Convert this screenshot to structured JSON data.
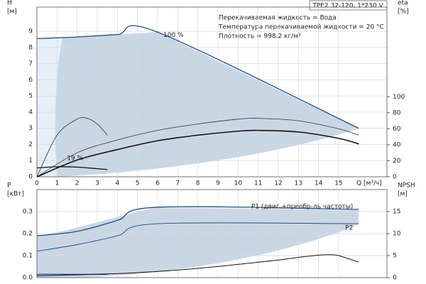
{
  "chart_data": [
    {
      "type": "line",
      "title": "TPE2 32-120, 1*230 V",
      "notes": [
        "Перекачиваемая жидкость = Вода",
        "Температура перекачиваемой жидкости = 20 °C",
        "Плотность = 998.2 кг/м³"
      ],
      "y_label": [
        "H",
        "[м]"
      ],
      "y2_label": [
        "eta",
        "[%]"
      ],
      "x_label": "Q [м³/ч]",
      "xlim": [
        0,
        17.4
      ],
      "xticks": [
        0,
        1,
        2,
        3,
        4,
        5,
        6,
        7,
        8,
        9,
        10,
        11,
        12,
        13,
        14,
        15
      ],
      "ylim": [
        0,
        10.5
      ],
      "yticks": [
        0,
        1,
        2,
        3,
        4,
        5,
        6,
        7,
        8,
        9
      ],
      "y2lim": [
        0,
        212
      ],
      "y2ticks": [
        0,
        20,
        40,
        60,
        80,
        100
      ],
      "grid": true,
      "series": [
        {
          "name": "100 %",
          "color": "#1f4e8c",
          "width": 1.3,
          "x": [
            0,
            1,
            2,
            4,
            6,
            16
          ],
          "values": [
            8.55,
            8.6,
            8.65,
            8.8,
            8.95,
            3.0
          ]
        },
        {
          "name": "19 %",
          "color": "#111111",
          "width": 1.3,
          "x": [
            0,
            1,
            2,
            3,
            3.5
          ],
          "values": [
            0.55,
            0.62,
            0.6,
            0.5,
            0.45
          ]
        },
        {
          "color": "#111111",
          "width": 1.6,
          "axis": "y2",
          "x": [
            0,
            2,
            4,
            6,
            8,
            10,
            11,
            13,
            15,
            16
          ],
          "values": [
            0,
            21,
            34,
            45,
            52,
            57,
            58,
            56,
            48,
            41
          ]
        },
        {
          "color": "#333333",
          "width": 0.8,
          "axis": "y2",
          "x": [
            0,
            2,
            4,
            6,
            8,
            10,
            11,
            13,
            15,
            16
          ],
          "values": [
            0,
            30,
            46,
            58,
            66,
            72,
            73,
            70,
            60,
            52
          ]
        },
        {
          "color": "#333333",
          "width": 0.8,
          "axis": "y2",
          "x": [
            0,
            1,
            2,
            2.5,
            3,
            3.5
          ],
          "values": [
            0,
            52,
            72,
            73,
            66,
            52
          ]
        }
      ]
    },
    {
      "type": "line",
      "y_label": [
        "P",
        "[кВт]"
      ],
      "y2_label": [
        "NPSH",
        "[м]"
      ],
      "ylim": [
        0,
        0.4
      ],
      "yticks": [
        {
          "value": 0,
          "label": "0.0"
        },
        0.1,
        0.2,
        0.3
      ],
      "y2lim": [
        0,
        20
      ],
      "y2ticks": [
        0,
        5,
        10,
        15
      ],
      "grid": true,
      "series": [
        {
          "name": "P1 (двиг.+преобр-ль частоты)",
          "color": "#1f4e8c",
          "width": 1.3,
          "x": [
            0,
            2,
            4,
            6,
            16
          ],
          "values": [
            0.19,
            0.21,
            0.26,
            0.32,
            0.31
          ]
        },
        {
          "name": "P2",
          "color": "#1f4e8c",
          "width": 0.9,
          "x": [
            0,
            2,
            4,
            6,
            16
          ],
          "values": [
            0.12,
            0.15,
            0.19,
            0.245,
            0.245
          ]
        },
        {
          "color": "#1f4e8c",
          "width": 1.3,
          "x": [
            0,
            3.5
          ],
          "values": [
            0.015,
            0.015
          ]
        },
        {
          "color": "#111111",
          "width": 1.0,
          "axis": "y2",
          "x": [
            0,
            4,
            6,
            8,
            10,
            12,
            13,
            14,
            14.5,
            15,
            16
          ],
          "values": [
            0.4,
            0.9,
            1.4,
            2.1,
            3.0,
            4.0,
            4.6,
            5.1,
            5.2,
            5.0,
            3.5
          ]
        }
      ]
    }
  ]
}
